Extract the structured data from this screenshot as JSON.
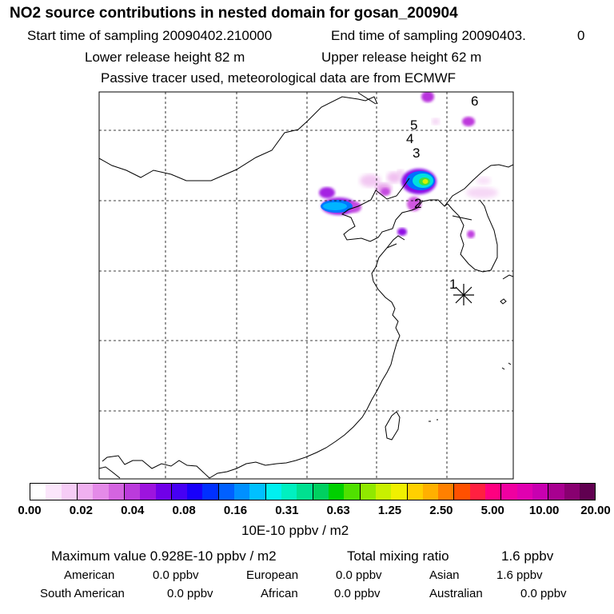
{
  "header": {
    "title": "NO2 source contributions in nested domain for gosan_200904",
    "start": "Start time of sampling 20090402.210000",
    "end": "End time of sampling 20090403.",
    "end_suffix": "0",
    "lower": "Lower release height   82 m",
    "upper": "Upper release height   62 m",
    "tracer": "Passive tracer used, meteorological data are from ECMWF"
  },
  "map": {
    "markers": [
      "1",
      "2",
      "3",
      "4",
      "5",
      "6"
    ],
    "receptor": "gosan-receptor"
  },
  "colorbar": {
    "colors": [
      "#ffffff",
      "#fbe6fb",
      "#f6ccf6",
      "#f0b0f0",
      "#e48ae8",
      "#d464e0",
      "#bb3bdc",
      "#9d14de",
      "#7000e8",
      "#4600f4",
      "#1800fa",
      "#0030ff",
      "#0060ff",
      "#0090ff",
      "#00c0ff",
      "#00f0f0",
      "#00f0c0",
      "#00e090",
      "#00d060",
      "#00d000",
      "#50e000",
      "#90e800",
      "#c8f000",
      "#f0f000",
      "#ffd000",
      "#ffb000",
      "#ff8000",
      "#ff5000",
      "#ff2040",
      "#ff0080",
      "#f000a0",
      "#e000b0",
      "#c800b0",
      "#a80090",
      "#880070",
      "#600050"
    ],
    "ticks": [
      "0.00",
      "0.02",
      "0.04",
      "0.08",
      "0.16",
      "0.31",
      "0.63",
      "1.25",
      "2.50",
      "5.00",
      "10.00",
      "20.00"
    ],
    "unit": "10E-10 ppbv / m2"
  },
  "stats": {
    "max_label": "Maximum value  0.928E-10 ppbv / m2",
    "total_label": "Total mixing ratio",
    "total_value": "1.6 ppbv",
    "american_label": "American",
    "american_value": "0.0 ppbv",
    "european_label": "European",
    "european_value": "0.0 ppbv",
    "asian_label": "Asian",
    "asian_value": "1.6 ppbv",
    "south_american_label": "South American",
    "south_american_value": "0.0 ppbv",
    "african_label": "African",
    "african_value": "0.0 ppbv",
    "australian_label": "Australian",
    "australian_value": "0.0 ppbv"
  }
}
